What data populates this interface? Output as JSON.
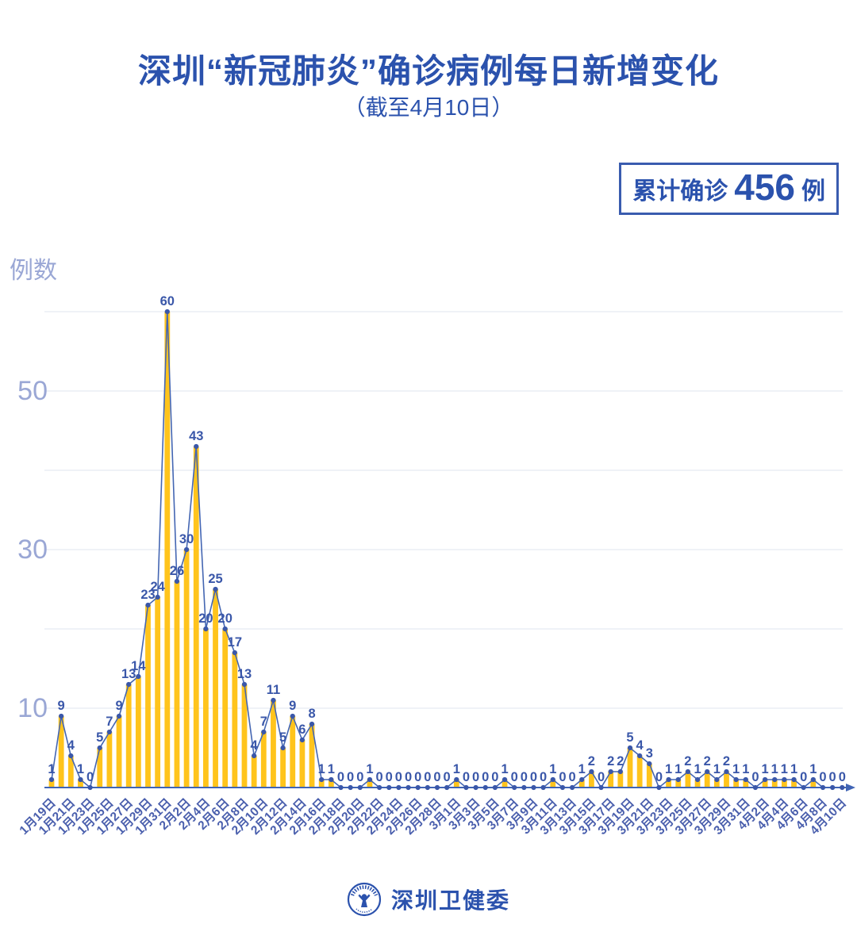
{
  "header": {
    "title": "深圳“新冠肺炎”确诊病例每日新增变化",
    "subtitle": "（截至4月10日）"
  },
  "badge": {
    "prefix": "累计确诊",
    "number": "456",
    "suffix": "例"
  },
  "footer": {
    "brand": "深圳卫健委",
    "logo": "shenzhen-health-commission-seal-logo"
  },
  "chart_data": {
    "type": "bar",
    "title": "深圳“新冠肺炎”确诊病例每日新增变化",
    "xlabel": "",
    "ylabel": "例数",
    "ylim": [
      0,
      60
    ],
    "yticks_labeled": [
      10,
      30,
      50
    ],
    "gridlines": [
      10,
      20,
      30,
      40,
      50,
      60
    ],
    "grid": true,
    "legend_position": "none",
    "x_tick_step": 2,
    "point_labels_shown": true,
    "categories": [
      "1月19日",
      "1月20日",
      "1月21日",
      "1月22日",
      "1月23日",
      "1月24日",
      "1月25日",
      "1月26日",
      "1月27日",
      "1月28日",
      "1月29日",
      "1月30日",
      "1月31日",
      "2月1日",
      "2月2日",
      "2月3日",
      "2月4日",
      "2月5日",
      "2月6日",
      "2月7日",
      "2月8日",
      "2月9日",
      "2月10日",
      "2月11日",
      "2月12日",
      "2月13日",
      "2月14日",
      "2月15日",
      "2月16日",
      "2月17日",
      "2月18日",
      "2月19日",
      "2月20日",
      "2月21日",
      "2月22日",
      "2月23日",
      "2月24日",
      "2月25日",
      "2月26日",
      "2月27日",
      "2月28日",
      "2月29日",
      "3月1日",
      "3月2日",
      "3月3日",
      "3月4日",
      "3月5日",
      "3月6日",
      "3月7日",
      "3月8日",
      "3月9日",
      "3月10日",
      "3月11日",
      "3月12日",
      "3月13日",
      "3月14日",
      "3月15日",
      "3月16日",
      "3月17日",
      "3月18日",
      "3月19日",
      "3月20日",
      "3月21日",
      "3月22日",
      "3月23日",
      "3月24日",
      "3月25日",
      "3月26日",
      "3月27日",
      "3月28日",
      "3月29日",
      "3月30日",
      "3月31日",
      "4月1日",
      "4月2日",
      "4月3日",
      "4月4日",
      "4月5日",
      "4月6日",
      "4月7日",
      "4月8日",
      "4月9日",
      "4月10日"
    ],
    "values": [
      1,
      9,
      4,
      1,
      0,
      5,
      7,
      9,
      13,
      14,
      23,
      24,
      60,
      26,
      30,
      43,
      20,
      25,
      20,
      17,
      13,
      4,
      7,
      11,
      5,
      9,
      6,
      8,
      1,
      1,
      0,
      0,
      0,
      1,
      0,
      0,
      0,
      0,
      0,
      0,
      0,
      0,
      1,
      0,
      0,
      0,
      0,
      1,
      0,
      0,
      0,
      0,
      1,
      0,
      0,
      1,
      2,
      0,
      2,
      2,
      5,
      4,
      3,
      0,
      1,
      1,
      2,
      1,
      2,
      1,
      2,
      1,
      1,
      0,
      1,
      1,
      1,
      1,
      0,
      1,
      0,
      0,
      0
    ],
    "cumulative_total": 456,
    "colors": {
      "bar": "#ffc41c",
      "line": "#4466b2",
      "dot": "#3a57a9",
      "value_label": "#3a57a9",
      "axis": "#4064b5",
      "gridline": "#e5e9f2",
      "y_tick_label": "#9aa7d5",
      "x_tick_label": "#4a5fad",
      "title_blue": "#2b52ad"
    }
  }
}
